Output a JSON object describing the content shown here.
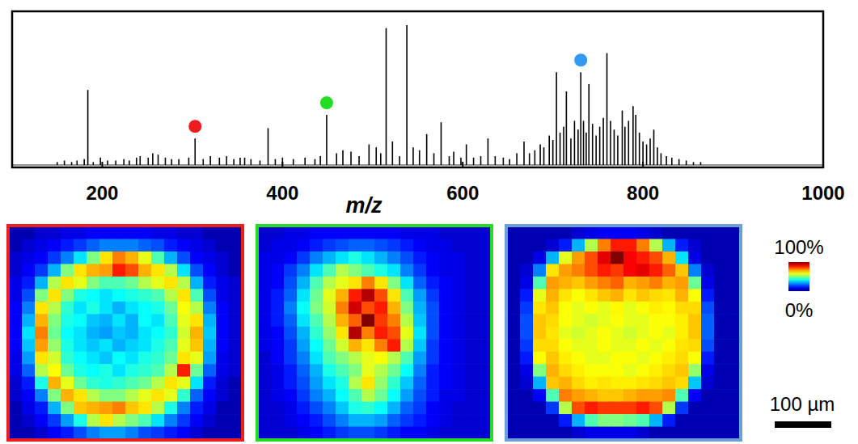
{
  "chart_data": [
    {
      "type": "stem",
      "x_label": "m/z",
      "x": [
        150,
        158,
        166,
        172,
        180,
        184,
        190,
        198,
        206,
        215,
        224,
        230,
        238,
        242,
        251,
        256,
        262,
        270,
        277,
        285,
        296,
        303,
        312,
        320,
        330,
        338,
        346,
        353,
        358,
        365,
        375,
        384,
        392,
        400,
        412,
        425,
        436,
        442,
        449,
        460,
        467,
        476,
        485,
        496,
        504,
        509,
        515,
        522,
        530,
        538,
        545,
        552,
        560,
        568,
        576,
        585,
        590,
        598,
        604,
        612,
        620,
        628,
        636,
        645,
        652,
        660,
        668,
        674,
        680,
        686,
        690,
        696,
        700,
        704,
        708,
        712,
        715,
        720,
        724,
        728,
        731,
        734,
        737,
        740,
        744,
        748,
        752,
        756,
        760,
        764,
        768,
        772,
        777,
        780,
        784,
        789,
        792,
        796,
        800,
        804,
        808,
        812,
        816,
        820,
        826,
        832,
        840,
        848,
        856,
        864
      ],
      "values": [
        2,
        3,
        2,
        3,
        4,
        51,
        2,
        5,
        3,
        3,
        4,
        3,
        5,
        6,
        5,
        8,
        7,
        5,
        4,
        4,
        5,
        18,
        4,
        6,
        5,
        6,
        4,
        5,
        5,
        4,
        3,
        25,
        4,
        5,
        4,
        5,
        4,
        6,
        34,
        8,
        10,
        9,
        6,
        14,
        12,
        8,
        93,
        16,
        6,
        95,
        12,
        10,
        21,
        8,
        29,
        6,
        9,
        5,
        14,
        5,
        6,
        18,
        6,
        5,
        4,
        8,
        16,
        8,
        10,
        14,
        12,
        20,
        17,
        63,
        22,
        26,
        50,
        18,
        30,
        24,
        63,
        30,
        22,
        55,
        28,
        20,
        26,
        32,
        76,
        30,
        24,
        20,
        37,
        26,
        30,
        40,
        34,
        22,
        16,
        14,
        18,
        24,
        12,
        8,
        6,
        5,
        4,
        3,
        2,
        2
      ],
      "color": "#000000",
      "xlim": [
        100,
        1000
      ],
      "xticks": [
        200,
        400,
        600,
        800,
        1000
      ],
      "ylim": [
        0,
        100
      ],
      "tick_labels": "x",
      "highlights": [
        {
          "x": 303,
          "color": "#ee1c1c"
        },
        {
          "x": 449,
          "color": "#22dd22"
        },
        {
          "x": 731,
          "color": "#3399ee"
        }
      ]
    },
    {
      "type": "heatmap",
      "color": "#ee1c1c",
      "cells": [
        [
          5,
          5,
          8,
          8,
          10,
          10,
          12,
          12,
          12,
          12,
          12,
          10,
          10,
          8,
          8,
          5,
          5,
          5
        ],
        [
          5,
          8,
          10,
          12,
          15,
          18,
          22,
          25,
          25,
          25,
          22,
          20,
          15,
          12,
          10,
          8,
          5,
          5
        ],
        [
          8,
          10,
          12,
          18,
          25,
          35,
          50,
          65,
          75,
          70,
          60,
          45,
          30,
          20,
          12,
          10,
          8,
          5
        ],
        [
          8,
          12,
          18,
          30,
          50,
          65,
          70,
          72,
          85,
          80,
          70,
          65,
          55,
          35,
          20,
          12,
          8,
          5
        ],
        [
          10,
          15,
          30,
          55,
          65,
          60,
          50,
          45,
          45,
          48,
          55,
          60,
          65,
          55,
          30,
          15,
          10,
          8
        ],
        [
          10,
          20,
          50,
          65,
          50,
          40,
          38,
          35,
          38,
          40,
          42,
          45,
          55,
          65,
          45,
          20,
          10,
          8
        ],
        [
          12,
          25,
          65,
          55,
          42,
          35,
          40,
          35,
          30,
          35,
          38,
          40,
          48,
          62,
          55,
          25,
          12,
          8
        ],
        [
          12,
          30,
          70,
          50,
          40,
          38,
          32,
          30,
          35,
          30,
          38,
          35,
          45,
          60,
          65,
          30,
          12,
          8
        ],
        [
          12,
          35,
          75,
          48,
          38,
          35,
          30,
          28,
          32,
          30,
          35,
          38,
          42,
          58,
          70,
          32,
          12,
          8
        ],
        [
          12,
          32,
          72,
          52,
          40,
          35,
          32,
          35,
          30,
          33,
          35,
          40,
          45,
          60,
          68,
          30,
          12,
          8
        ],
        [
          10,
          28,
          65,
          58,
          42,
          38,
          35,
          32,
          38,
          35,
          40,
          42,
          48,
          65,
          60,
          28,
          10,
          8
        ],
        [
          10,
          22,
          55,
          62,
          48,
          40,
          38,
          40,
          35,
          40,
          42,
          45,
          55,
          85,
          48,
          22,
          10,
          8
        ],
        [
          8,
          15,
          40,
          70,
          60,
          48,
          42,
          40,
          42,
          45,
          48,
          55,
          65,
          60,
          35,
          15,
          8,
          5
        ],
        [
          8,
          12,
          25,
          50,
          70,
          65,
          55,
          50,
          50,
          55,
          60,
          65,
          60,
          42,
          22,
          12,
          8,
          5
        ],
        [
          5,
          10,
          15,
          30,
          50,
          68,
          70,
          72,
          75,
          68,
          65,
          55,
          40,
          25,
          15,
          10,
          5,
          5
        ],
        [
          5,
          8,
          12,
          18,
          28,
          40,
          55,
          65,
          55,
          50,
          45,
          35,
          25,
          18,
          12,
          8,
          5,
          5
        ],
        [
          5,
          5,
          8,
          12,
          15,
          20,
          25,
          28,
          28,
          25,
          20,
          18,
          15,
          12,
          8,
          5,
          5,
          5
        ]
      ]
    },
    {
      "type": "heatmap",
      "color": "#22dd22",
      "cells": [
        [
          8,
          8,
          10,
          10,
          12,
          12,
          12,
          12,
          12,
          12,
          12,
          10,
          10,
          10,
          8,
          8,
          8,
          8
        ],
        [
          8,
          10,
          10,
          12,
          15,
          18,
          20,
          22,
          22,
          20,
          18,
          15,
          12,
          10,
          10,
          8,
          8,
          8
        ],
        [
          10,
          10,
          12,
          18,
          25,
          30,
          35,
          40,
          35,
          30,
          25,
          20,
          15,
          12,
          10,
          10,
          8,
          8
        ],
        [
          10,
          12,
          18,
          25,
          35,
          45,
          55,
          50,
          45,
          40,
          35,
          25,
          18,
          12,
          10,
          10,
          8,
          8
        ],
        [
          10,
          12,
          20,
          30,
          45,
          55,
          60,
          65,
          75,
          65,
          50,
          35,
          22,
          15,
          12,
          10,
          8,
          8
        ],
        [
          10,
          15,
          22,
          35,
          48,
          60,
          70,
          85,
          95,
          80,
          65,
          45,
          28,
          18,
          12,
          10,
          8,
          8
        ],
        [
          10,
          15,
          25,
          38,
          50,
          58,
          75,
          92,
          80,
          85,
          70,
          50,
          30,
          20,
          12,
          10,
          8,
          8
        ],
        [
          10,
          15,
          22,
          35,
          45,
          55,
          70,
          78,
          100,
          82,
          75,
          55,
          32,
          20,
          12,
          10,
          8,
          8
        ],
        [
          10,
          12,
          20,
          30,
          42,
          52,
          65,
          95,
          75,
          85,
          80,
          60,
          35,
          20,
          12,
          10,
          8,
          8
        ],
        [
          10,
          12,
          18,
          28,
          38,
          48,
          58,
          70,
          65,
          75,
          85,
          55,
          32,
          18,
          12,
          10,
          8,
          8
        ],
        [
          8,
          12,
          18,
          25,
          35,
          45,
          50,
          55,
          60,
          62,
          55,
          45,
          28,
          18,
          12,
          10,
          8,
          8
        ],
        [
          8,
          10,
          15,
          22,
          30,
          40,
          45,
          50,
          60,
          55,
          48,
          38,
          25,
          15,
          12,
          10,
          8,
          8
        ],
        [
          8,
          10,
          15,
          20,
          28,
          35,
          40,
          55,
          65,
          52,
          42,
          32,
          22,
          15,
          12,
          10,
          8,
          8
        ],
        [
          8,
          10,
          12,
          18,
          25,
          30,
          38,
          45,
          55,
          48,
          38,
          28,
          20,
          15,
          10,
          10,
          8,
          8
        ],
        [
          8,
          8,
          10,
          15,
          20,
          25,
          32,
          40,
          42,
          38,
          30,
          22,
          18,
          12,
          10,
          8,
          8,
          8
        ],
        [
          8,
          8,
          10,
          12,
          15,
          20,
          25,
          30,
          30,
          28,
          22,
          18,
          15,
          12,
          10,
          8,
          8,
          8
        ],
        [
          8,
          8,
          8,
          10,
          12,
          15,
          18,
          20,
          20,
          18,
          15,
          12,
          12,
          10,
          8,
          8,
          8,
          8
        ]
      ]
    },
    {
      "type": "heatmap",
      "color": "#6a9fd8",
      "cells": [
        [
          5,
          5,
          5,
          5,
          5,
          8,
          10,
          12,
          12,
          12,
          10,
          8,
          5,
          5,
          5,
          5,
          5,
          5
        ],
        [
          5,
          5,
          5,
          8,
          15,
          30,
          55,
          75,
          85,
          85,
          75,
          55,
          30,
          15,
          8,
          5,
          5,
          5
        ],
        [
          5,
          5,
          10,
          30,
          60,
          72,
          80,
          90,
          100,
          88,
          85,
          80,
          70,
          35,
          10,
          5,
          5,
          5
        ],
        [
          5,
          8,
          25,
          65,
          72,
          75,
          80,
          85,
          82,
          88,
          90,
          85,
          78,
          68,
          25,
          8,
          5,
          5
        ],
        [
          5,
          10,
          45,
          72,
          70,
          68,
          72,
          75,
          78,
          70,
          72,
          75,
          70,
          72,
          48,
          10,
          5,
          5
        ],
        [
          5,
          15,
          60,
          70,
          65,
          62,
          65,
          68,
          70,
          65,
          68,
          66,
          65,
          70,
          62,
          15,
          5,
          5
        ],
        [
          5,
          18,
          65,
          68,
          62,
          60,
          62,
          60,
          63,
          60,
          62,
          64,
          63,
          66,
          66,
          20,
          5,
          5
        ],
        [
          5,
          20,
          68,
          66,
          62,
          60,
          58,
          60,
          62,
          60,
          60,
          62,
          62,
          64,
          68,
          22,
          5,
          5
        ],
        [
          5,
          20,
          68,
          65,
          60,
          58,
          60,
          62,
          60,
          58,
          60,
          62,
          60,
          64,
          68,
          22,
          5,
          5
        ],
        [
          5,
          18,
          66,
          66,
          62,
          60,
          60,
          62,
          60,
          60,
          62,
          60,
          62,
          65,
          66,
          20,
          5,
          5
        ],
        [
          5,
          15,
          62,
          68,
          64,
          62,
          60,
          60,
          62,
          62,
          60,
          62,
          64,
          66,
          62,
          15,
          5,
          5
        ],
        [
          5,
          10,
          50,
          70,
          66,
          64,
          62,
          62,
          62,
          60,
          62,
          64,
          66,
          68,
          52,
          10,
          5,
          5
        ],
        [
          5,
          8,
          30,
          68,
          70,
          66,
          64,
          65,
          64,
          64,
          65,
          66,
          68,
          66,
          32,
          8,
          5,
          5
        ],
        [
          5,
          5,
          12,
          45,
          75,
          72,
          70,
          68,
          68,
          70,
          72,
          72,
          74,
          45,
          12,
          5,
          5,
          5
        ],
        [
          5,
          5,
          5,
          18,
          55,
          80,
          85,
          82,
          82,
          82,
          85,
          80,
          55,
          18,
          5,
          5,
          5,
          5
        ],
        [
          5,
          5,
          5,
          5,
          15,
          30,
          45,
          50,
          50,
          48,
          45,
          30,
          15,
          5,
          5,
          5,
          5,
          5
        ],
        [
          5,
          5,
          5,
          5,
          5,
          8,
          10,
          10,
          10,
          10,
          8,
          5,
          5,
          5,
          5,
          5,
          5,
          5
        ]
      ]
    }
  ],
  "colorbar": {
    "range": [
      0,
      100
    ],
    "ticks": [
      {
        "value": 100,
        "label": "100%"
      },
      {
        "value": 0,
        "label": "0%"
      }
    ]
  },
  "scale_bar": {
    "label": "100 µm"
  }
}
